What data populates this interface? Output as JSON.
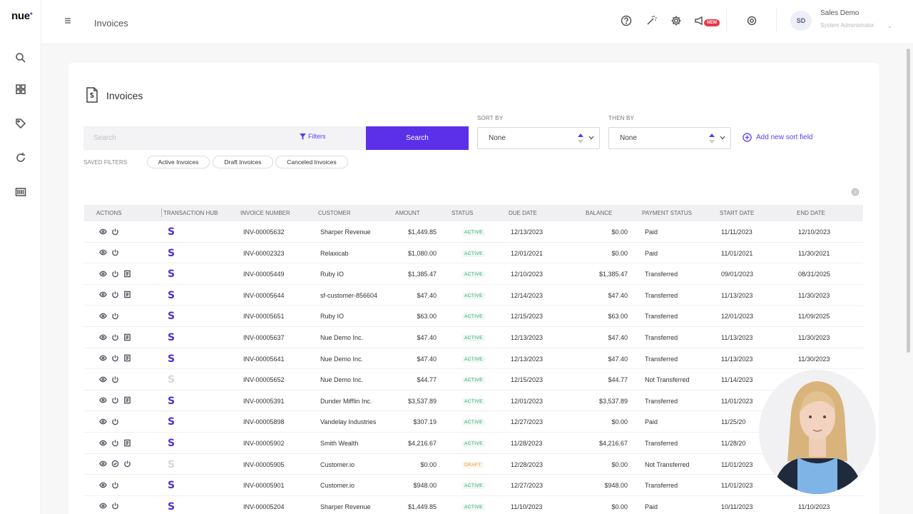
{
  "app": {
    "logo": "nue",
    "page_heading": "Invoices"
  },
  "header": {
    "user_initials": "SD",
    "user_name": "Sales Demo",
    "user_role": "System Administrator",
    "new_badge": "NEW"
  },
  "page": {
    "title": "Invoices"
  },
  "search": {
    "placeholder": "Search",
    "value": "",
    "filters_label": "Filters",
    "button_label": "Search"
  },
  "sort": {
    "sort_by_label": "SORT BY",
    "sort_by_value": "None",
    "then_by_label": "THEN BY",
    "then_by_value": "None",
    "add_label": "Add new sort field"
  },
  "saved_filters": {
    "label": "SAVED FILTERS",
    "chips": [
      "Active Invoices",
      "Draft Invoices",
      "Canceled Invoices"
    ]
  },
  "table": {
    "columns": [
      "ACTIONS",
      "TRANSACTION HUB",
      "INVOICE NUMBER",
      "CUSTOMER",
      "AMOUNT",
      "STATUS",
      "DUE DATE",
      "BALANCE",
      "PAYMENT STATUS",
      "START DATE",
      "END DATE"
    ],
    "rows": [
      {
        "actions": [
          "eye",
          "power"
        ],
        "hub": "active",
        "invoice": "INV-00005632",
        "customer": "Sharper Revenue",
        "amount": "$1,449.85",
        "status": "ACTIVE",
        "due": "12/13/2023",
        "balance": "$0.00",
        "payment": "Paid",
        "start": "11/11/2023",
        "end": "12/10/2023"
      },
      {
        "actions": [
          "eye",
          "power"
        ],
        "hub": "active",
        "invoice": "INV-00002323",
        "customer": "Relaxicab",
        "amount": "$1,080.00",
        "status": "ACTIVE",
        "due": "12/01/2021",
        "balance": "$0.00",
        "payment": "Paid",
        "start": "11/01/2021",
        "end": "11/30/2021"
      },
      {
        "actions": [
          "eye",
          "power",
          "doc"
        ],
        "hub": "active",
        "invoice": "INV-00005449",
        "customer": "Ruby IO",
        "amount": "$1,385.47",
        "status": "ACTIVE",
        "due": "12/10/2023",
        "balance": "$1,385.47",
        "payment": "Transferred",
        "start": "09/01/2023",
        "end": "08/31/2025"
      },
      {
        "actions": [
          "eye",
          "power",
          "doc"
        ],
        "hub": "active",
        "invoice": "INV-00005644",
        "customer": "sf-customer-856604",
        "amount": "$47.40",
        "status": "ACTIVE",
        "due": "12/14/2023",
        "balance": "$47.40",
        "payment": "Transferred",
        "start": "11/13/2023",
        "end": "11/30/2023"
      },
      {
        "actions": [
          "eye",
          "power"
        ],
        "hub": "active",
        "invoice": "INV-00005651",
        "customer": "Ruby IO",
        "amount": "$63.00",
        "status": "ACTIVE",
        "due": "12/15/2023",
        "balance": "$63.00",
        "payment": "Transferred",
        "start": "12/01/2023",
        "end": "11/09/2025"
      },
      {
        "actions": [
          "eye",
          "power",
          "doc"
        ],
        "hub": "active",
        "invoice": "INV-00005637",
        "customer": "Nue Demo Inc.",
        "amount": "$47.40",
        "status": "ACTIVE",
        "due": "12/13/2023",
        "balance": "$47.40",
        "payment": "Transferred",
        "start": "11/13/2023",
        "end": "11/30/2023"
      },
      {
        "actions": [
          "eye",
          "power",
          "doc"
        ],
        "hub": "active",
        "invoice": "INV-00005641",
        "customer": "Nue Demo Inc.",
        "amount": "$47.40",
        "status": "ACTIVE",
        "due": "12/13/2023",
        "balance": "$47.40",
        "payment": "Transferred",
        "start": "11/13/2023",
        "end": "11/30/2023"
      },
      {
        "actions": [
          "eye",
          "power"
        ],
        "hub": "inactive",
        "invoice": "INV-00005652",
        "customer": "Nue Demo Inc.",
        "amount": "$44.77",
        "status": "ACTIVE",
        "due": "12/15/2023",
        "balance": "$44.77",
        "payment": "Not Transferred",
        "start": "11/14/2023",
        "end": ""
      },
      {
        "actions": [
          "eye",
          "power",
          "doc"
        ],
        "hub": "active",
        "invoice": "INV-00005391",
        "customer": "Dunder Mifflin Inc.",
        "amount": "$3,537.89",
        "status": "ACTIVE",
        "due": "12/01/2023",
        "balance": "$3,537.89",
        "payment": "Transferred",
        "start": "11/01/2023",
        "end": ""
      },
      {
        "actions": [
          "eye",
          "power"
        ],
        "hub": "active",
        "invoice": "INV-00005898",
        "customer": "Vandelay Industries",
        "amount": "$307.19",
        "status": "ACTIVE",
        "due": "12/27/2023",
        "balance": "$0.00",
        "payment": "Paid",
        "start": "11/25/20",
        "end": ""
      },
      {
        "actions": [
          "eye",
          "power",
          "doc"
        ],
        "hub": "active",
        "invoice": "INV-00005902",
        "customer": "Smith Wealth",
        "amount": "$4,216.67",
        "status": "ACTIVE",
        "due": "11/28/2023",
        "balance": "$4,216.67",
        "payment": "Transferred",
        "start": "11/28/20",
        "end": ""
      },
      {
        "actions": [
          "eye",
          "check",
          "power"
        ],
        "hub": "inactive",
        "invoice": "INV-00005905",
        "customer": "Customer.io",
        "amount": "$0.00",
        "status": "DRAFT",
        "due": "12/28/2023",
        "balance": "$0.00",
        "payment": "Not Transferred",
        "start": "11/01/2023",
        "end": ""
      },
      {
        "actions": [
          "eye",
          "power"
        ],
        "hub": "active",
        "invoice": "INV-00005901",
        "customer": "Customer.io",
        "amount": "$948.00",
        "status": "ACTIVE",
        "due": "12/27/2023",
        "balance": "$948.00",
        "payment": "Transferred",
        "start": "11/01/2023",
        "end": ""
      },
      {
        "actions": [
          "eye",
          "power"
        ],
        "hub": "active",
        "invoice": "INV-00005204",
        "customer": "Sharper Revenue",
        "amount": "$1,449.85",
        "status": "ACTIVE",
        "due": "11/10/2023",
        "balance": "$0.00",
        "payment": "Paid",
        "start": "10/11/2023",
        "end": "11/10/2023"
      }
    ]
  },
  "colors": {
    "accent": "#5b30e8",
    "hub_active": "#4b2fd6",
    "hub_inactive": "#d6d6da",
    "status_active": "#2fa66a",
    "status_draft": "#e39a2f"
  },
  "icons": {
    "rail": [
      "search-icon",
      "dashboard-icon",
      "tag-icon",
      "refresh-icon",
      "barcode-icon"
    ],
    "header": [
      "help-icon",
      "magic-wand-icon",
      "gear-icon",
      "announcement-icon",
      "settings-icon"
    ]
  }
}
